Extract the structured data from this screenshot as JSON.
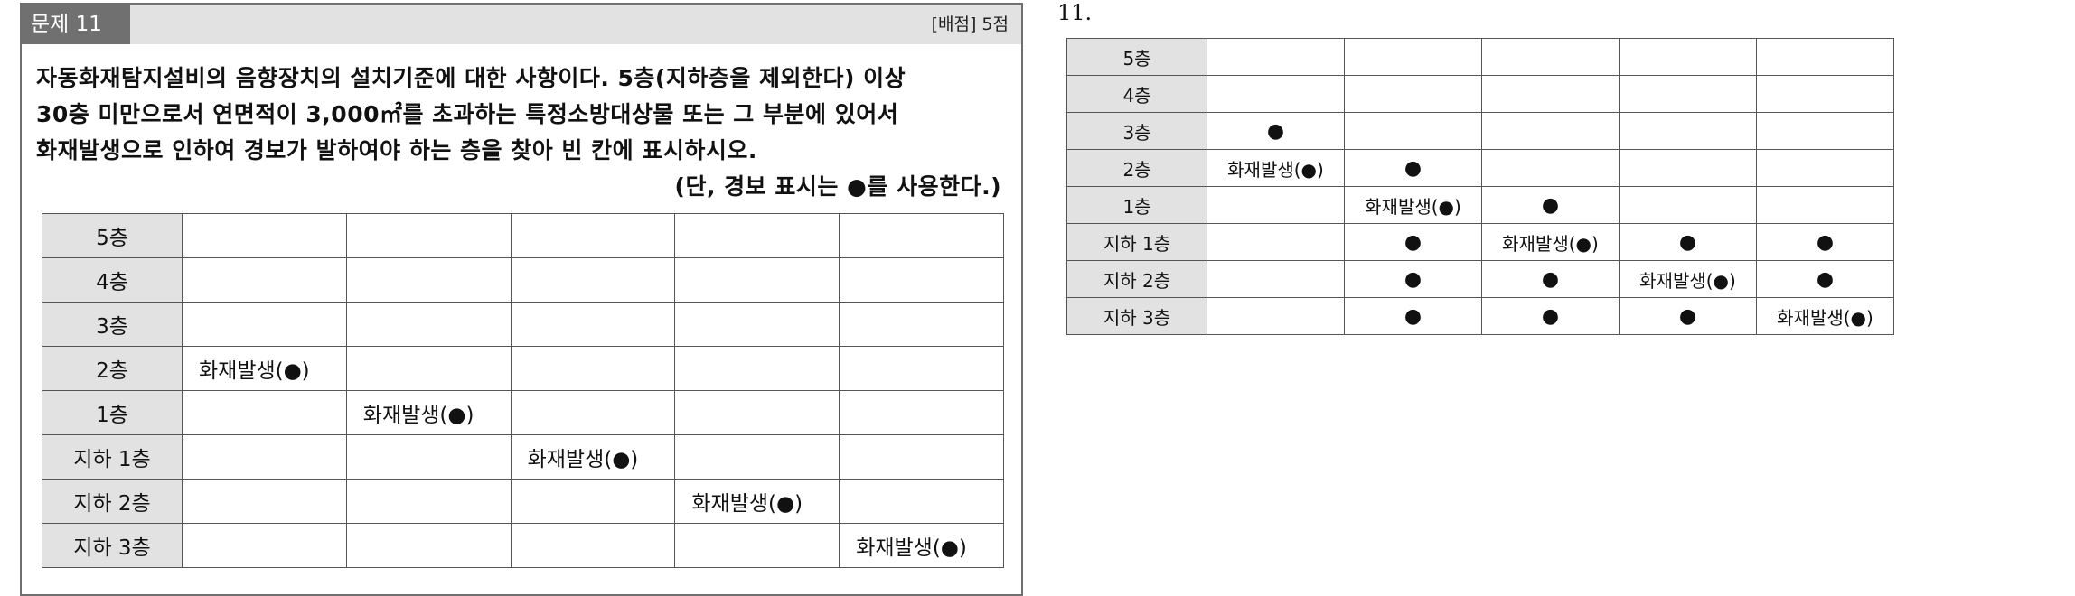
{
  "problem": {
    "label": "문제 11",
    "score": "[배점] 5점",
    "question_lines": [
      "자동화재탐지설비의 음향장치의 설치기준에 대한 사항이다. 5층(지하층을 제외한다) 이상",
      "30층 미만으로서 연면적이 3,000㎡를 초과하는 특정소방대상물 또는 그 부분에 있어서",
      "화재발생으로 인하여 경보가 발하여야 하는 층을 찾아 빈 칸에 표시하시오."
    ],
    "note": "(단, 경보 표시는 ●를 사용한다.)",
    "table": {
      "floors": [
        "5층",
        "4층",
        "3층",
        "2층",
        "1층",
        "지하 1층",
        "지하 2층",
        "지하 3층"
      ],
      "rows": [
        [
          "",
          "",
          "",
          "",
          ""
        ],
        [
          "",
          "",
          "",
          "",
          ""
        ],
        [
          "",
          "",
          "",
          "",
          ""
        ],
        [
          "화재발생(●)",
          "",
          "",
          "",
          ""
        ],
        [
          "",
          "화재발생(●)",
          "",
          "",
          ""
        ],
        [
          "",
          "",
          "화재발생(●)",
          "",
          ""
        ],
        [
          "",
          "",
          "",
          "화재발생(●)",
          ""
        ],
        [
          "",
          "",
          "",
          "",
          "화재발생(●)"
        ]
      ]
    }
  },
  "answer": {
    "number": "11.",
    "table": {
      "floors": [
        "5층",
        "4층",
        "3층",
        "2층",
        "1층",
        "지하 1층",
        "지하 2층",
        "지하 3층"
      ],
      "rows": [
        [
          "",
          "",
          "",
          "",
          ""
        ],
        [
          "",
          "",
          "",
          "",
          ""
        ],
        [
          "●",
          "",
          "",
          "",
          ""
        ],
        [
          "화재발생(●)",
          "●",
          "",
          "",
          ""
        ],
        [
          "",
          "화재발생(●)",
          "●",
          "",
          ""
        ],
        [
          "",
          "●",
          "화재발생(●)",
          "●",
          "●"
        ],
        [
          "",
          "●",
          "●",
          "화재발생(●)",
          "●"
        ],
        [
          "",
          "●",
          "●",
          "●",
          "화재발생(●)"
        ]
      ]
    }
  }
}
